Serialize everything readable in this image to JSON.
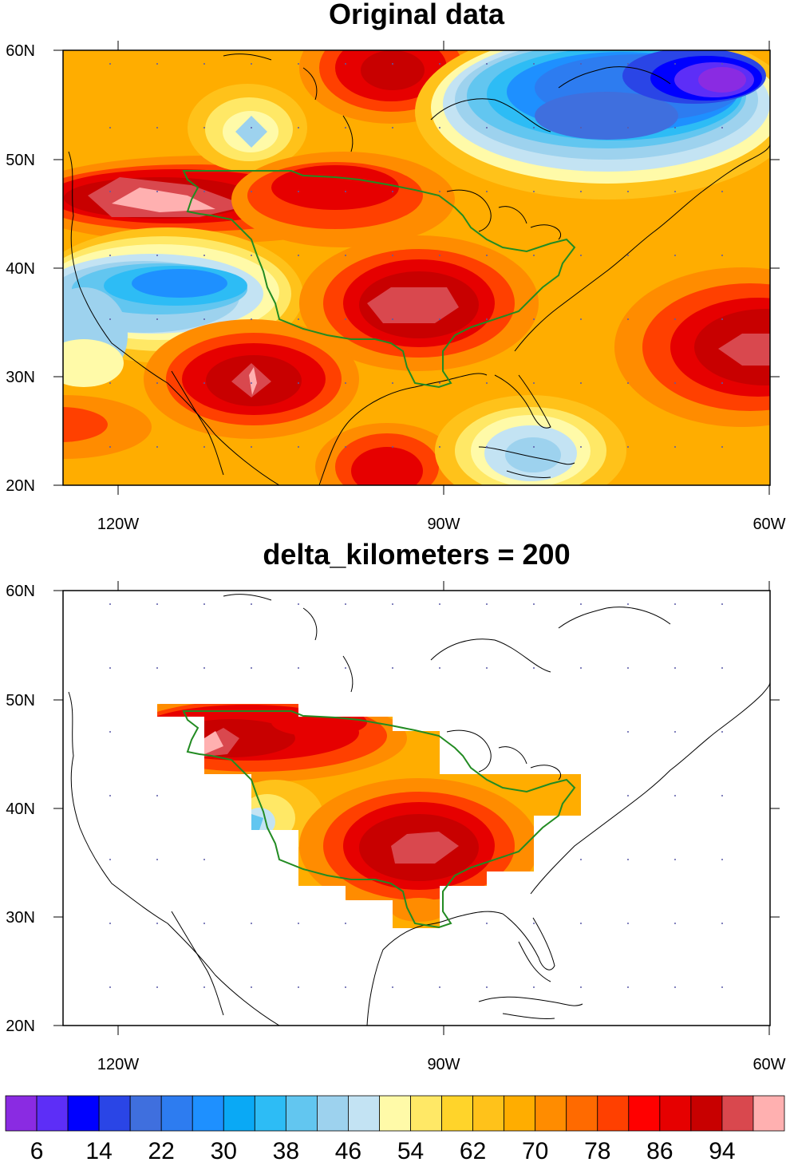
{
  "panels": [
    {
      "title": "Original data",
      "lat_labels": [
        "60N",
        "50N",
        "40N",
        "30N",
        "20N"
      ],
      "lon_labels": [
        "120W",
        "90W",
        "60W"
      ]
    },
    {
      "title": "delta_kilometers = 200",
      "lat_labels": [
        "60N",
        "50N",
        "40N",
        "30N",
        "20N"
      ],
      "lon_labels": [
        "120W",
        "90W",
        "60W"
      ]
    }
  ],
  "colorbar": {
    "labels": [
      "6",
      "14",
      "22",
      "30",
      "38",
      "46",
      "54",
      "62",
      "70",
      "78",
      "86",
      "94"
    ],
    "colors": [
      "#8a2be2",
      "#5d2ef7",
      "#0000ff",
      "#2a45e6",
      "#3f6fde",
      "#2d7cf0",
      "#1e90ff",
      "#0aa9f5",
      "#2dbcf5",
      "#62c6f0",
      "#9dd2ee",
      "#c3e3f3",
      "#fffaa8",
      "#ffe866",
      "#ffd42a",
      "#ffc21a",
      "#ffad00",
      "#ff8c00",
      "#ff6a00",
      "#ff4000",
      "#ff0000",
      "#e60000",
      "#c80000",
      "#d9484e",
      "#ffb0b0"
    ]
  },
  "chart_data": {
    "type": "heatmap",
    "map_extent": {
      "lon_range": [
        -125,
        -60
      ],
      "lat_range": [
        20,
        60
      ]
    },
    "colorbar_levels": [
      6,
      14,
      22,
      30,
      38,
      46,
      54,
      62,
      70,
      78,
      86,
      94
    ]
  }
}
